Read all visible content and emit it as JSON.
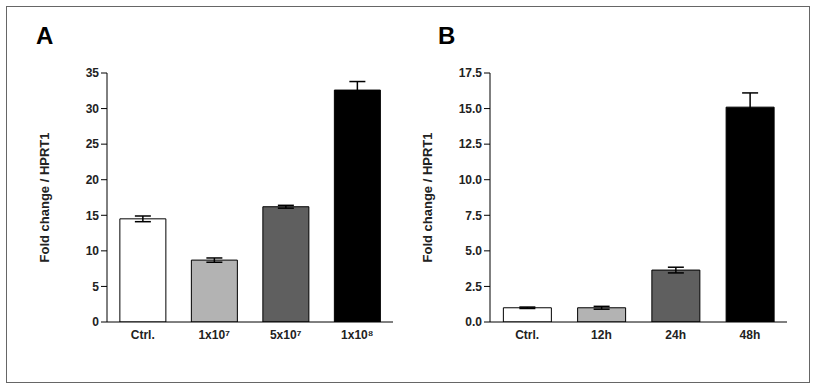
{
  "chart_data": [
    {
      "type": "bar",
      "title": "A",
      "y_label": "Fold change / HPRT1",
      "categories": [
        "Ctrl.",
        "1x10⁷",
        "5x10⁷",
        "1x10⁸"
      ],
      "values": [
        14.5,
        8.7,
        16.2,
        32.6
      ],
      "errors": [
        0.4,
        0.3,
        0.2,
        1.2
      ],
      "colors": [
        "#ffffff",
        "#b3b3b3",
        "#5f5f5f",
        "#000000"
      ],
      "ylim": [
        0,
        35
      ],
      "yticks": [
        0,
        5,
        10,
        15,
        20,
        25,
        30,
        35
      ],
      "grid": false
    },
    {
      "type": "bar",
      "title": "B",
      "y_label": "Fold change / HPRT1",
      "categories": [
        "Ctrl.",
        "12h",
        "24h",
        "48h"
      ],
      "values": [
        1.0,
        1.0,
        3.65,
        15.1
      ],
      "errors": [
        0.05,
        0.1,
        0.2,
        1.0
      ],
      "colors": [
        "#ffffff",
        "#b3b3b3",
        "#5f5f5f",
        "#000000"
      ],
      "ylim": [
        0,
        17.5
      ],
      "yticks": [
        {
          "value": 0,
          "label": "0.0"
        },
        2.5,
        {
          "value": 5,
          "label": "5.0"
        },
        7.5,
        {
          "value": 10,
          "label": "10.0"
        },
        12.5,
        {
          "value": 15,
          "label": "15.0"
        },
        17.5
      ],
      "grid": false
    }
  ]
}
